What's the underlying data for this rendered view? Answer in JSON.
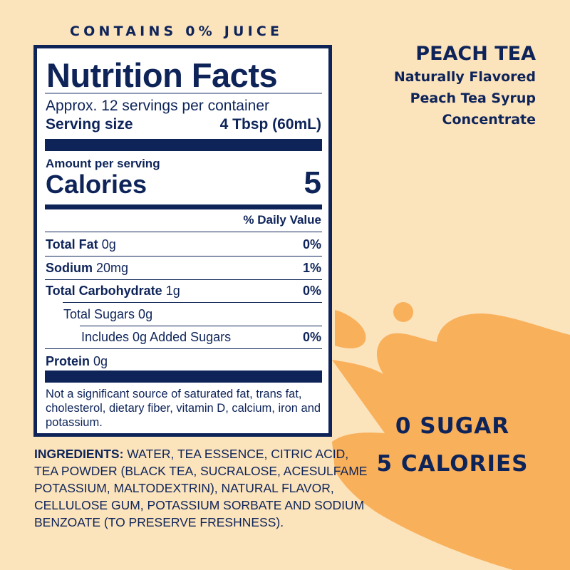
{
  "colors": {
    "background": "#fbe3bc",
    "splash": "#f9b05a",
    "navy": "#0e2459"
  },
  "header": {
    "contains": "CONTAINS 0% JUICE"
  },
  "product": {
    "name": "PEACH TEA",
    "line1": "Naturally Flavored",
    "line2": "Peach Tea Syrup",
    "line3": "Concentrate"
  },
  "label": {
    "title": "Nutrition Facts",
    "servings": "Approx. 12 servings per container",
    "serving_size_label": "Serving size",
    "serving_size_value": "4 Tbsp (60mL)",
    "amount_per_serving": "Amount per serving",
    "calories_label": "Calories",
    "calories_value": "5",
    "daily_value_header": "% Daily Value",
    "rows": [
      {
        "name": "Total Fat",
        "amount": "0g",
        "dv": "0%"
      },
      {
        "name": "Sodium",
        "amount": "20mg",
        "dv": "1%"
      },
      {
        "name": "Total Carbohydrate",
        "amount": "1g",
        "dv": "0%"
      },
      {
        "name": "Total Sugars 0g",
        "amount": "",
        "dv": ""
      },
      {
        "name": "Includes 0g Added Sugars",
        "amount": "",
        "dv": "0%"
      },
      {
        "name": "Protein",
        "amount": "0g",
        "dv": ""
      }
    ],
    "footnote": "Not a significant source of saturated fat, trans fat, cholesterol, dietary fiber, vitamin D, calcium, iron and potassium."
  },
  "ingredients": {
    "label": "INGREDIENTS:",
    "text": " WATER, TEA ESSENCE, CITRIC ACID, TEA POWDER (BLACK TEA, SUCRALOSE, ACESULFAME POTASSIUM, MALTODEXTRIN), NATURAL FLAVOR, CELLULOSE GUM, POTASSIUM SORBATE AND SODIUM BENZOATE (TO PRESERVE FRESHNESS)."
  },
  "claims": {
    "sugar": "0 SUGAR",
    "calories": "5 CALORIES"
  }
}
